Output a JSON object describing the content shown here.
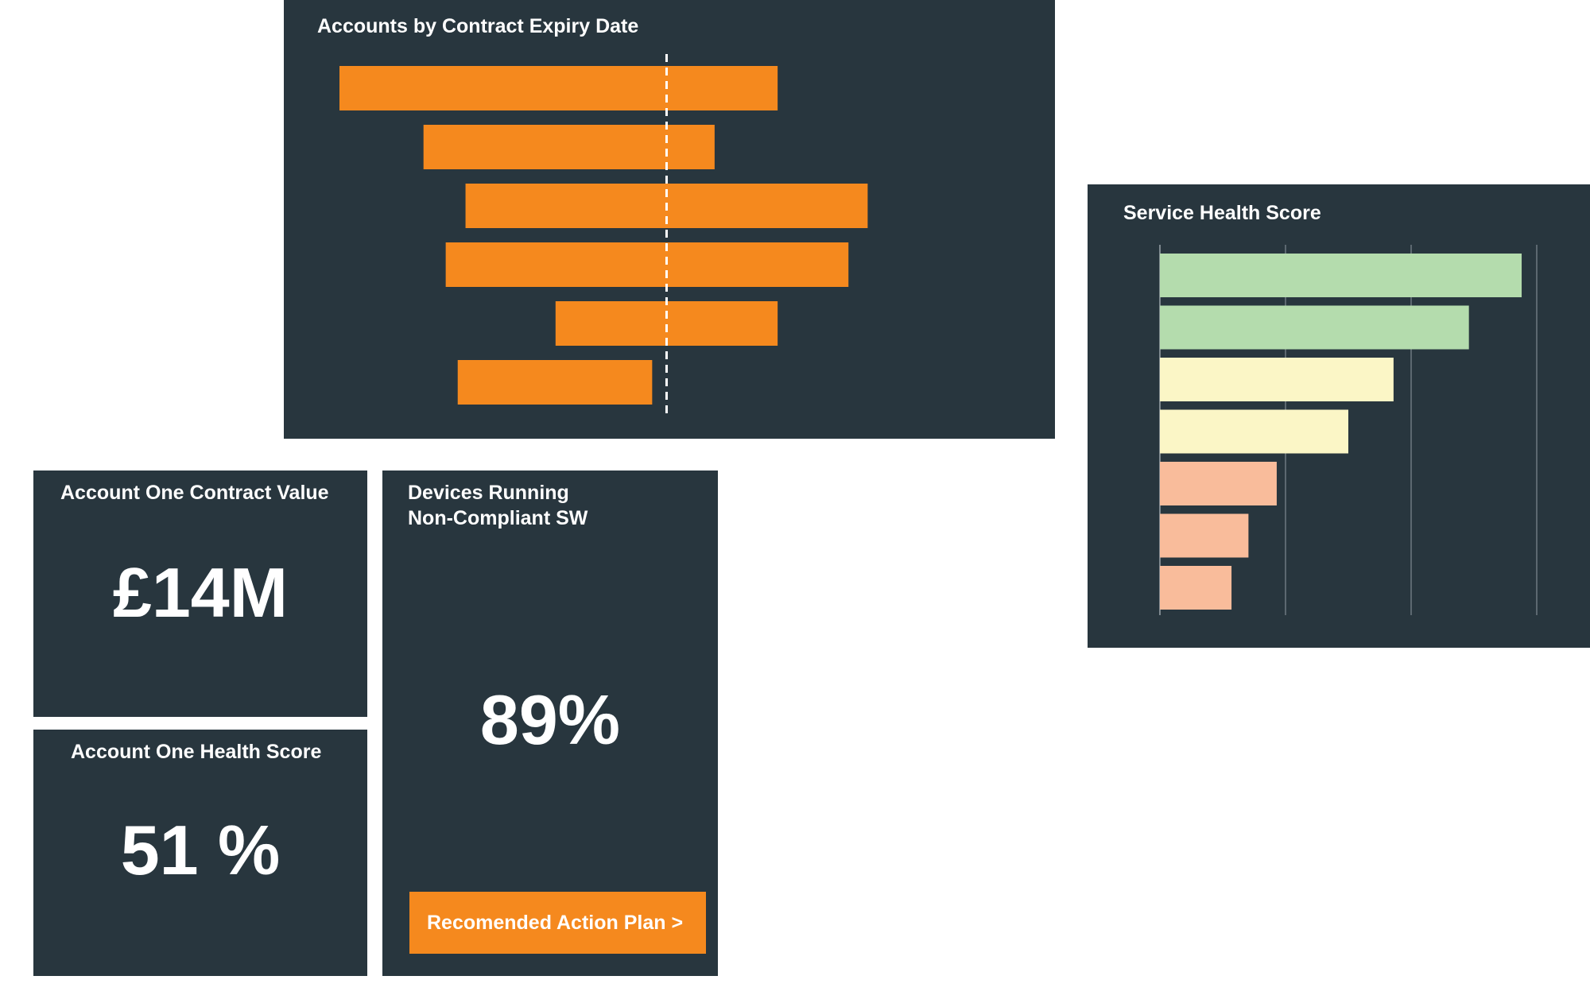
{
  "panels": {
    "expiry": {
      "title": "Accounts by Contract Expiry Date",
      "chart_data": {
        "type": "bar",
        "orientation": "horizontal-floating",
        "bars": [
          {
            "start": 0.0,
            "end": 0.73
          },
          {
            "start": 0.14,
            "end": 0.625
          },
          {
            "start": 0.21,
            "end": 0.88
          },
          {
            "start": 0.177,
            "end": 0.848
          },
          {
            "start": 0.36,
            "end": 0.73
          },
          {
            "start": 0.197,
            "end": 0.521
          }
        ],
        "reference_line": 0.545,
        "bar_color": "#f5891e",
        "reference_line_style": "dashed"
      }
    },
    "service_health": {
      "title": "Service Health Score",
      "chart_data": {
        "type": "bar",
        "orientation": "horizontal",
        "values": [
          0.96,
          0.82,
          0.62,
          0.5,
          0.31,
          0.235,
          0.19
        ],
        "colors": [
          "#b4dcad",
          "#b4dcad",
          "#fbf6c6",
          "#fbf6c6",
          "#f9bc9b",
          "#f9bc9b",
          "#f9bc9b"
        ],
        "grid_lines": 4,
        "grid": true
      }
    },
    "contract_value": {
      "title": "Account One Contract Value",
      "value": "£14M"
    },
    "account_health": {
      "title": "Account One Health Score",
      "value": "51 %"
    },
    "devices": {
      "title_line1": "Devices Running",
      "title_line2": "Non-Compliant SW",
      "value": "89%",
      "action_label": "Recomended Action Plan >"
    }
  },
  "colors": {
    "panel_bg": "#28363e",
    "accent": "#f5891e",
    "text": "#ffffff"
  }
}
